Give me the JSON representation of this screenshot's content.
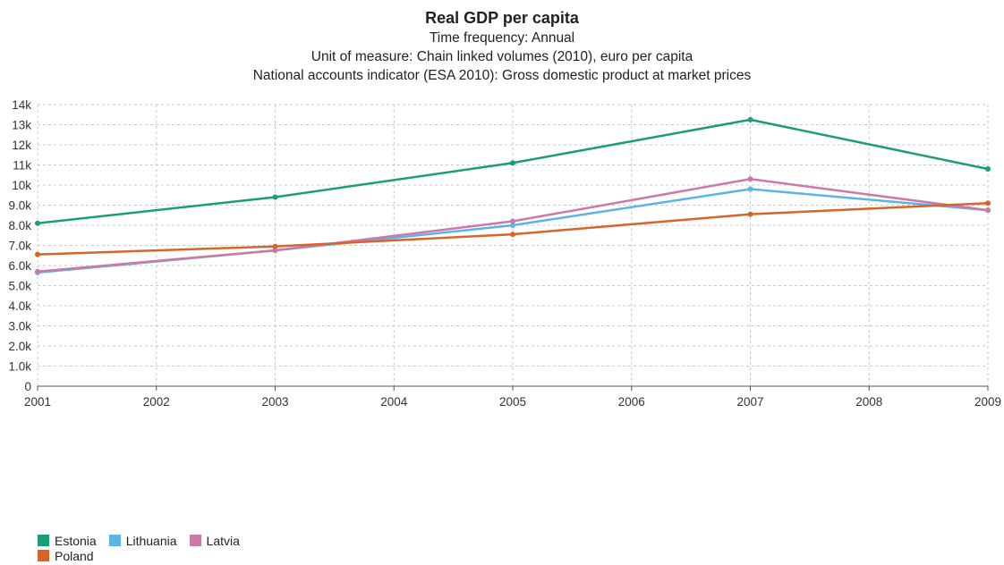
{
  "chart_data": {
    "type": "line",
    "title": "Real GDP per capita",
    "subtitles": [
      "Time frequency: Annual",
      "Unit of measure: Chain linked volumes (2010), euro per capita",
      "National accounts indicator (ESA 2010): Gross domestic product at market prices"
    ],
    "x_ticks": [
      "2001",
      "2002",
      "2003",
      "2004",
      "2005",
      "2006",
      "2007",
      "2008",
      "2009"
    ],
    "xlim": [
      2001,
      2009
    ],
    "y_ticks": [
      {
        "value": 0,
        "label": "0"
      },
      {
        "value": 1000,
        "label": "1.0k"
      },
      {
        "value": 2000,
        "label": "2.0k"
      },
      {
        "value": 3000,
        "label": "3.0k"
      },
      {
        "value": 4000,
        "label": "4.0k"
      },
      {
        "value": 5000,
        "label": "5.0k"
      },
      {
        "value": 6000,
        "label": "6.0k"
      },
      {
        "value": 7000,
        "label": "7.0k"
      },
      {
        "value": 8000,
        "label": "8.0k"
      },
      {
        "value": 9000,
        "label": "9.0k"
      },
      {
        "value": 10000,
        "label": "10k"
      },
      {
        "value": 11000,
        "label": "11k"
      },
      {
        "value": 12000,
        "label": "12k"
      },
      {
        "value": 13000,
        "label": "13k"
      },
      {
        "value": 14000,
        "label": "14k"
      }
    ],
    "ylim": [
      0,
      14000
    ],
    "grid": true,
    "legend_position": "bottom-left",
    "series": [
      {
        "name": "Estonia",
        "color": "#1a9e77",
        "x": [
          2001,
          2003,
          2005,
          2007,
          2009
        ],
        "y": [
          8100,
          9400,
          11100,
          13250,
          10800
        ]
      },
      {
        "name": "Lithuania",
        "color": "#5ab4e5",
        "x": [
          2001,
          2003,
          2005,
          2007,
          2009
        ],
        "y": [
          5650,
          6750,
          8000,
          9800,
          8750
        ]
      },
      {
        "name": "Latvia",
        "color": "#cc79a7",
        "x": [
          2001,
          2003,
          2005,
          2007,
          2009
        ],
        "y": [
          5700,
          6750,
          8200,
          10300,
          8750
        ]
      },
      {
        "name": "Poland",
        "color": "#d9642a",
        "x": [
          2001,
          2003,
          2005,
          2007,
          2009
        ],
        "y": [
          6550,
          6950,
          7550,
          8550,
          9100
        ]
      }
    ]
  }
}
